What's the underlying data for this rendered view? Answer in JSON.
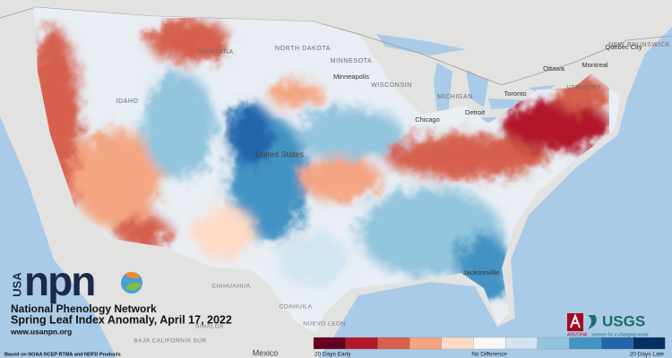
{
  "logo": {
    "country": "USA",
    "name": "npn",
    "org": "National Phenology Network"
  },
  "title": "Spring Leaf Index Anomaly, April 17, 2022",
  "url": "www.usanpn.org",
  "source": "Based on NOAA NCEP RTMA and NDFD Products",
  "partners": {
    "usgs": "USGS",
    "arizona": "ARIZONA",
    "usgs_tagline": "science for a changing world"
  },
  "legend": {
    "labels": [
      "20 Days Early",
      "No Difference",
      "20 Days Late"
    ],
    "colors": [
      "#67001f",
      "#b2182b",
      "#d6604d",
      "#f4a582",
      "#fddbc7",
      "#f7f7f7",
      "#d1e5f0",
      "#92c5de",
      "#4393c3",
      "#2166ac",
      "#053061"
    ]
  },
  "map": {
    "labels": [
      "MONTANA",
      "NORTH DAKOTA",
      "MINNESOTA",
      "Minneapolis",
      "WISCONSIN",
      "MICHIGAN",
      "Toronto",
      "Ottawa",
      "Montreal",
      "Quebec City",
      "NEW BRUNSWICK",
      "VERMONT",
      "IDAHO",
      "United States",
      "Chicago",
      "Detroit",
      "Jacksonville",
      "CHIHUAHUA",
      "COAHUILA",
      "SINALOA",
      "NUEVO LEON",
      "BAJA CALIFORNIA SUR",
      "Mexico"
    ]
  }
}
